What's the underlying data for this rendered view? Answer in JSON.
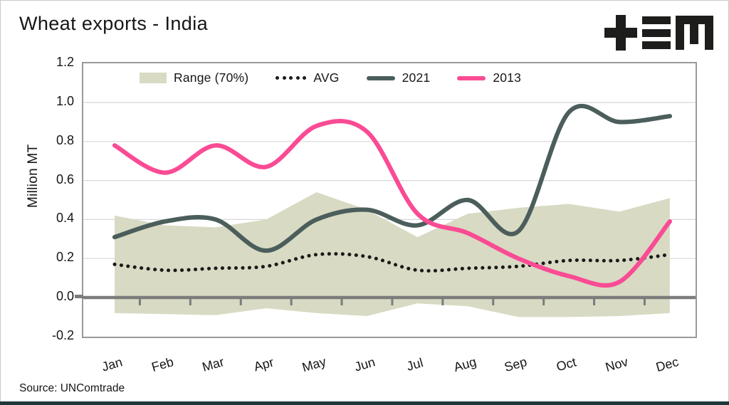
{
  "header": {
    "title": "Wheat exports - India",
    "logo_name": "tem-logo"
  },
  "footer": {
    "source": "Source: UNComtrade"
  },
  "chart_data": {
    "type": "line",
    "title": "Wheat exports - India",
    "ylabel": "Million MT",
    "xlabel": "",
    "categories": [
      "Jan",
      "Feb",
      "Mar",
      "Apr",
      "May",
      "Jun",
      "Jul",
      "Aug",
      "Sep",
      "Oct",
      "Nov",
      "Dec"
    ],
    "ylim": [
      -0.2,
      1.2
    ],
    "ytick_step": 0.2,
    "grid": "horizontal",
    "legend_position": "top-inside",
    "colors": {
      "band": "#d8dac3",
      "avg": "#1a1a1a",
      "y2021": "#4b5e5c",
      "y2013": "#fa4b94",
      "grid": "#d8d8d8",
      "zero_axis": "#7c7c7c",
      "tick": "#7c7c7c"
    },
    "series": [
      {
        "name": "Range (70%)",
        "type": "band",
        "upper": [
          0.42,
          0.37,
          0.36,
          0.4,
          0.54,
          0.45,
          0.31,
          0.43,
          0.46,
          0.48,
          0.44,
          0.51
        ],
        "lower": [
          -0.08,
          -0.085,
          -0.09,
          -0.055,
          -0.08,
          -0.095,
          -0.03,
          -0.045,
          -0.1,
          -0.1,
          -0.095,
          -0.08
        ]
      },
      {
        "name": "AVG",
        "type": "line",
        "style": "dotted",
        "values": [
          0.17,
          0.14,
          0.15,
          0.16,
          0.22,
          0.21,
          0.14,
          0.15,
          0.16,
          0.19,
          0.19,
          0.22
        ]
      },
      {
        "name": "2021",
        "type": "line",
        "style": "solid",
        "values": [
          0.31,
          0.39,
          0.4,
          0.24,
          0.4,
          0.45,
          0.37,
          0.5,
          0.34,
          0.95,
          0.9,
          0.93
        ]
      },
      {
        "name": "2013",
        "type": "line",
        "style": "solid",
        "values": [
          0.78,
          0.64,
          0.78,
          0.67,
          0.88,
          0.85,
          0.43,
          0.33,
          0.2,
          0.11,
          0.08,
          0.39
        ]
      }
    ]
  }
}
